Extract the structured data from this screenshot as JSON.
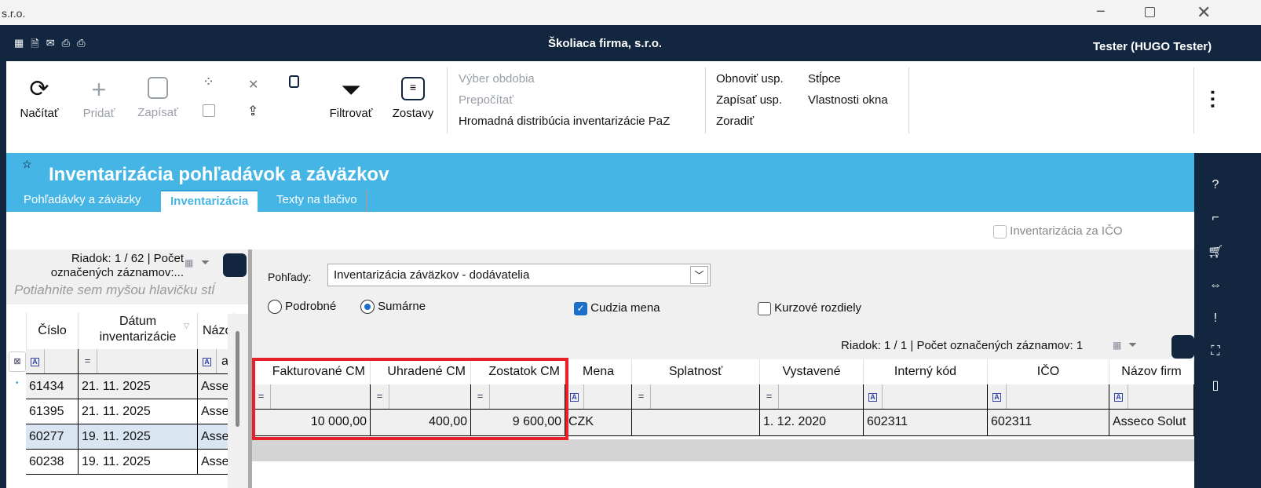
{
  "window": {
    "title_fragment": "s.r.o."
  },
  "header": {
    "company": "Školiaca firma, s.r.o.",
    "user": "Tester (HUGO Tester)",
    "icons": [
      "excel-export-icon",
      "document-icon",
      "mail-icon",
      "print-icon",
      "print-preview-icon"
    ]
  },
  "toolbar": {
    "load": "Načítať",
    "add": "Pridať",
    "save": "Zapísať",
    "filter": "Filtrovať",
    "reports": "Zostavy",
    "menu1": [
      "Výber obdobia",
      "Prepočítať",
      "Hromadná distribúcia inventarizácie PaZ"
    ],
    "menu2": [
      "Obnoviť usp.",
      "Zapísať usp.",
      "Zoradiť"
    ],
    "menu3": [
      "Stĺpce",
      "Vlastnosti okna"
    ]
  },
  "page": {
    "title": "Inventarizácia pohľadávok a záväzkov",
    "tabs": [
      {
        "label": "Pohľadávky a záväzky"
      },
      {
        "label": "Inventarizácia"
      },
      {
        "label": "Texty na tlačivo"
      }
    ],
    "active_tab": "Inventarizácia",
    "ico_checkbox": "Inventarizácia za IČO"
  },
  "left_grid": {
    "status_line1": "Riadok: 1 / 62 | Počet",
    "status_line2": "označených záznamov:...",
    "group_hint": "Potiahnite sem myšou hlavičku stĺ",
    "columns": [
      "Číslo",
      "Dátum inventarizácie",
      "Názo"
    ],
    "filter_value_name": "as",
    "rows": [
      {
        "cislo": "61434",
        "datum": "21. 11. 2025",
        "nazov": "Asseco"
      },
      {
        "cislo": "61395",
        "datum": "21. 11. 2025",
        "nazov": "Asseco"
      },
      {
        "cislo": "60277",
        "datum": "19. 11. 2025",
        "nazov": "Asseco"
      },
      {
        "cislo": "60238",
        "datum": "19. 11. 2025",
        "nazov": "Asseco"
      }
    ]
  },
  "right_panel": {
    "views_label": "Pohľady:",
    "views_value": "Inventarizácia záväzkov - dodávatelia",
    "radio_detail": "Podrobné",
    "radio_summary": "Sumárne",
    "radio_selected": "Sumárne",
    "foreign_currency": "Cudzia mena",
    "foreign_currency_checked": true,
    "fx_diff": "Kurzové rozdiely",
    "fx_diff_checked": false,
    "status": "Riadok: 1 / 1 | Počet označených záznamov: 1",
    "columns": [
      "Fakturované CM",
      "Uhradené CM",
      "Zostatok CM",
      "Mena",
      "Splatnosť",
      "Vystavené",
      "Interný kód",
      "IČO",
      "Názov firm"
    ],
    "row": [
      "10 000,00",
      "400,00",
      "9 600,00",
      "CZK",
      "",
      "1. 12. 2020",
      "602311",
      "602311",
      "Asseco Solut"
    ],
    "highlight_color": "#e8202a"
  }
}
